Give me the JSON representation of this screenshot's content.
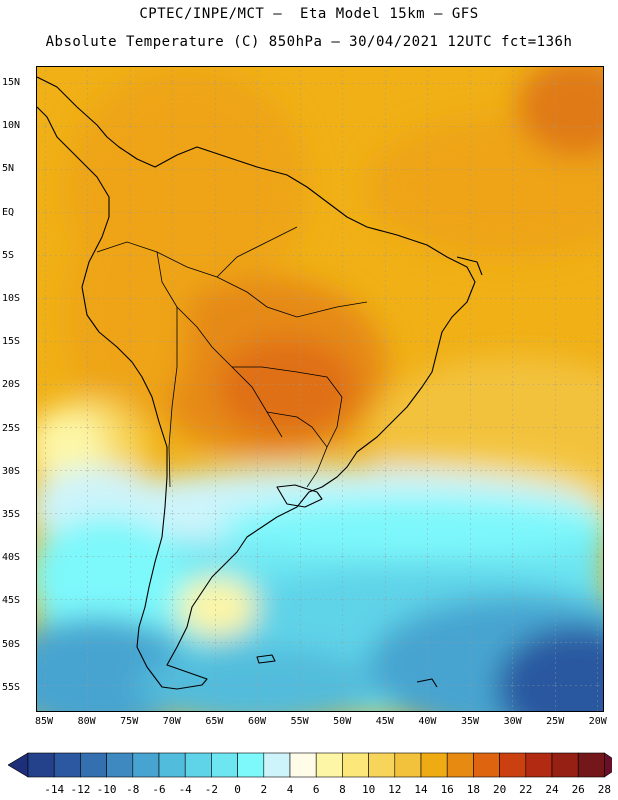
{
  "header": {
    "title_line1": "CPTEC/INPE/MCT –  Eta Model 15km – GFS",
    "title_line2": "Absolute Temperature (C) 850hPa – 30/04/2021 12UTC fct=136h"
  },
  "map": {
    "lat_labels": [
      "15N",
      "10N",
      "5N",
      "EQ",
      "5S",
      "10S",
      "15S",
      "20S",
      "25S",
      "30S",
      "35S",
      "40S",
      "45S",
      "50S",
      "55S"
    ],
    "lon_labels": [
      "85W",
      "80W",
      "75W",
      "70W",
      "65W",
      "60W",
      "55W",
      "50W",
      "45W",
      "40W",
      "35W",
      "30W",
      "25W",
      "20W"
    ],
    "region": "South America"
  },
  "colorbar": {
    "labels": [
      "-14",
      "-12",
      "-10",
      "-8",
      "-6",
      "-4",
      "-2",
      "0",
      "2",
      "4",
      "6",
      "8",
      "10",
      "12",
      "14",
      "16",
      "18",
      "20",
      "22",
      "24",
      "26",
      "28"
    ],
    "colors": [
      "#24418c",
      "#2b58a0",
      "#3470b0",
      "#3d89c0",
      "#47a4d0",
      "#52bcdc",
      "#5fd3e8",
      "#6de6f2",
      "#7df8fb",
      "#cdf4fb",
      "#fffde8",
      "#fdf6a6",
      "#fbe77a",
      "#f7d55a",
      "#f3c23d",
      "#eeab14",
      "#e78a12",
      "#de6410",
      "#cb4010",
      "#b22a12",
      "#952013",
      "#74171a"
    ]
  }
}
